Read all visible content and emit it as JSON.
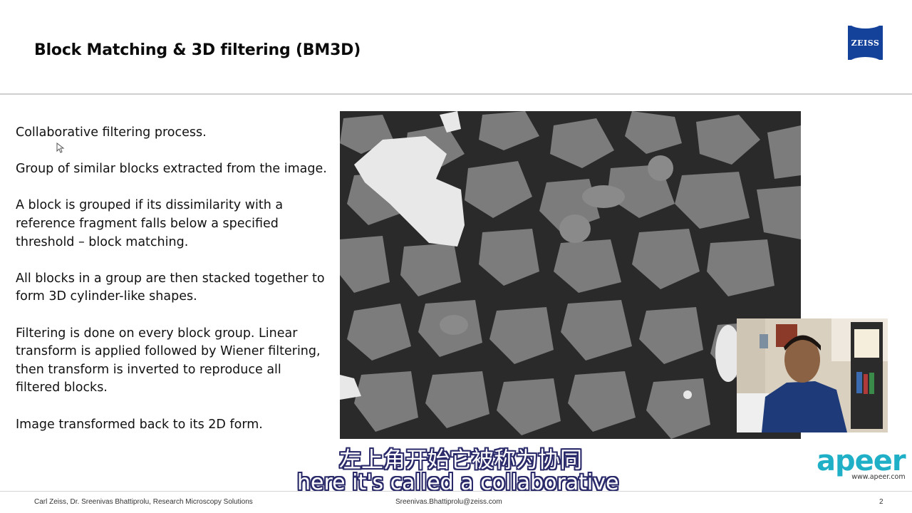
{
  "slide": {
    "title": "Block Matching & 3D filtering (BM3D)",
    "logo_text": "ZEISS",
    "paragraphs": [
      "Collaborative filtering process.",
      "Group of similar blocks extracted from the image.",
      "A block is grouped if its dissimilarity with a reference fragment falls below a specified threshold – block matching.",
      "All blocks in a group are then stacked together to form 3D cylinder-like shapes.",
      "Filtering is done on every block group. Linear transform is applied followed by Wiener filtering, then transform is inverted to reproduce all filtered blocks.",
      "Image transformed back to its 2D form."
    ]
  },
  "subtitles": {
    "chinese": "左上角开始它被称为协同",
    "english": "here it's called a collaborative"
  },
  "branding": {
    "apeer_word": "apeer",
    "apeer_url": "www.apeer.com"
  },
  "footer": {
    "left": "Carl Zeiss, Dr. Sreenivas Bhattiprolu, Research Microscopy Solutions",
    "email": "Sreenivas.Bhattiprolu@zeiss.com",
    "page": "2"
  },
  "colors": {
    "zeiss_blue": "#14419a",
    "apeer_teal": "#1fb0c8",
    "subtitle_outline": "#2a2a6a"
  }
}
